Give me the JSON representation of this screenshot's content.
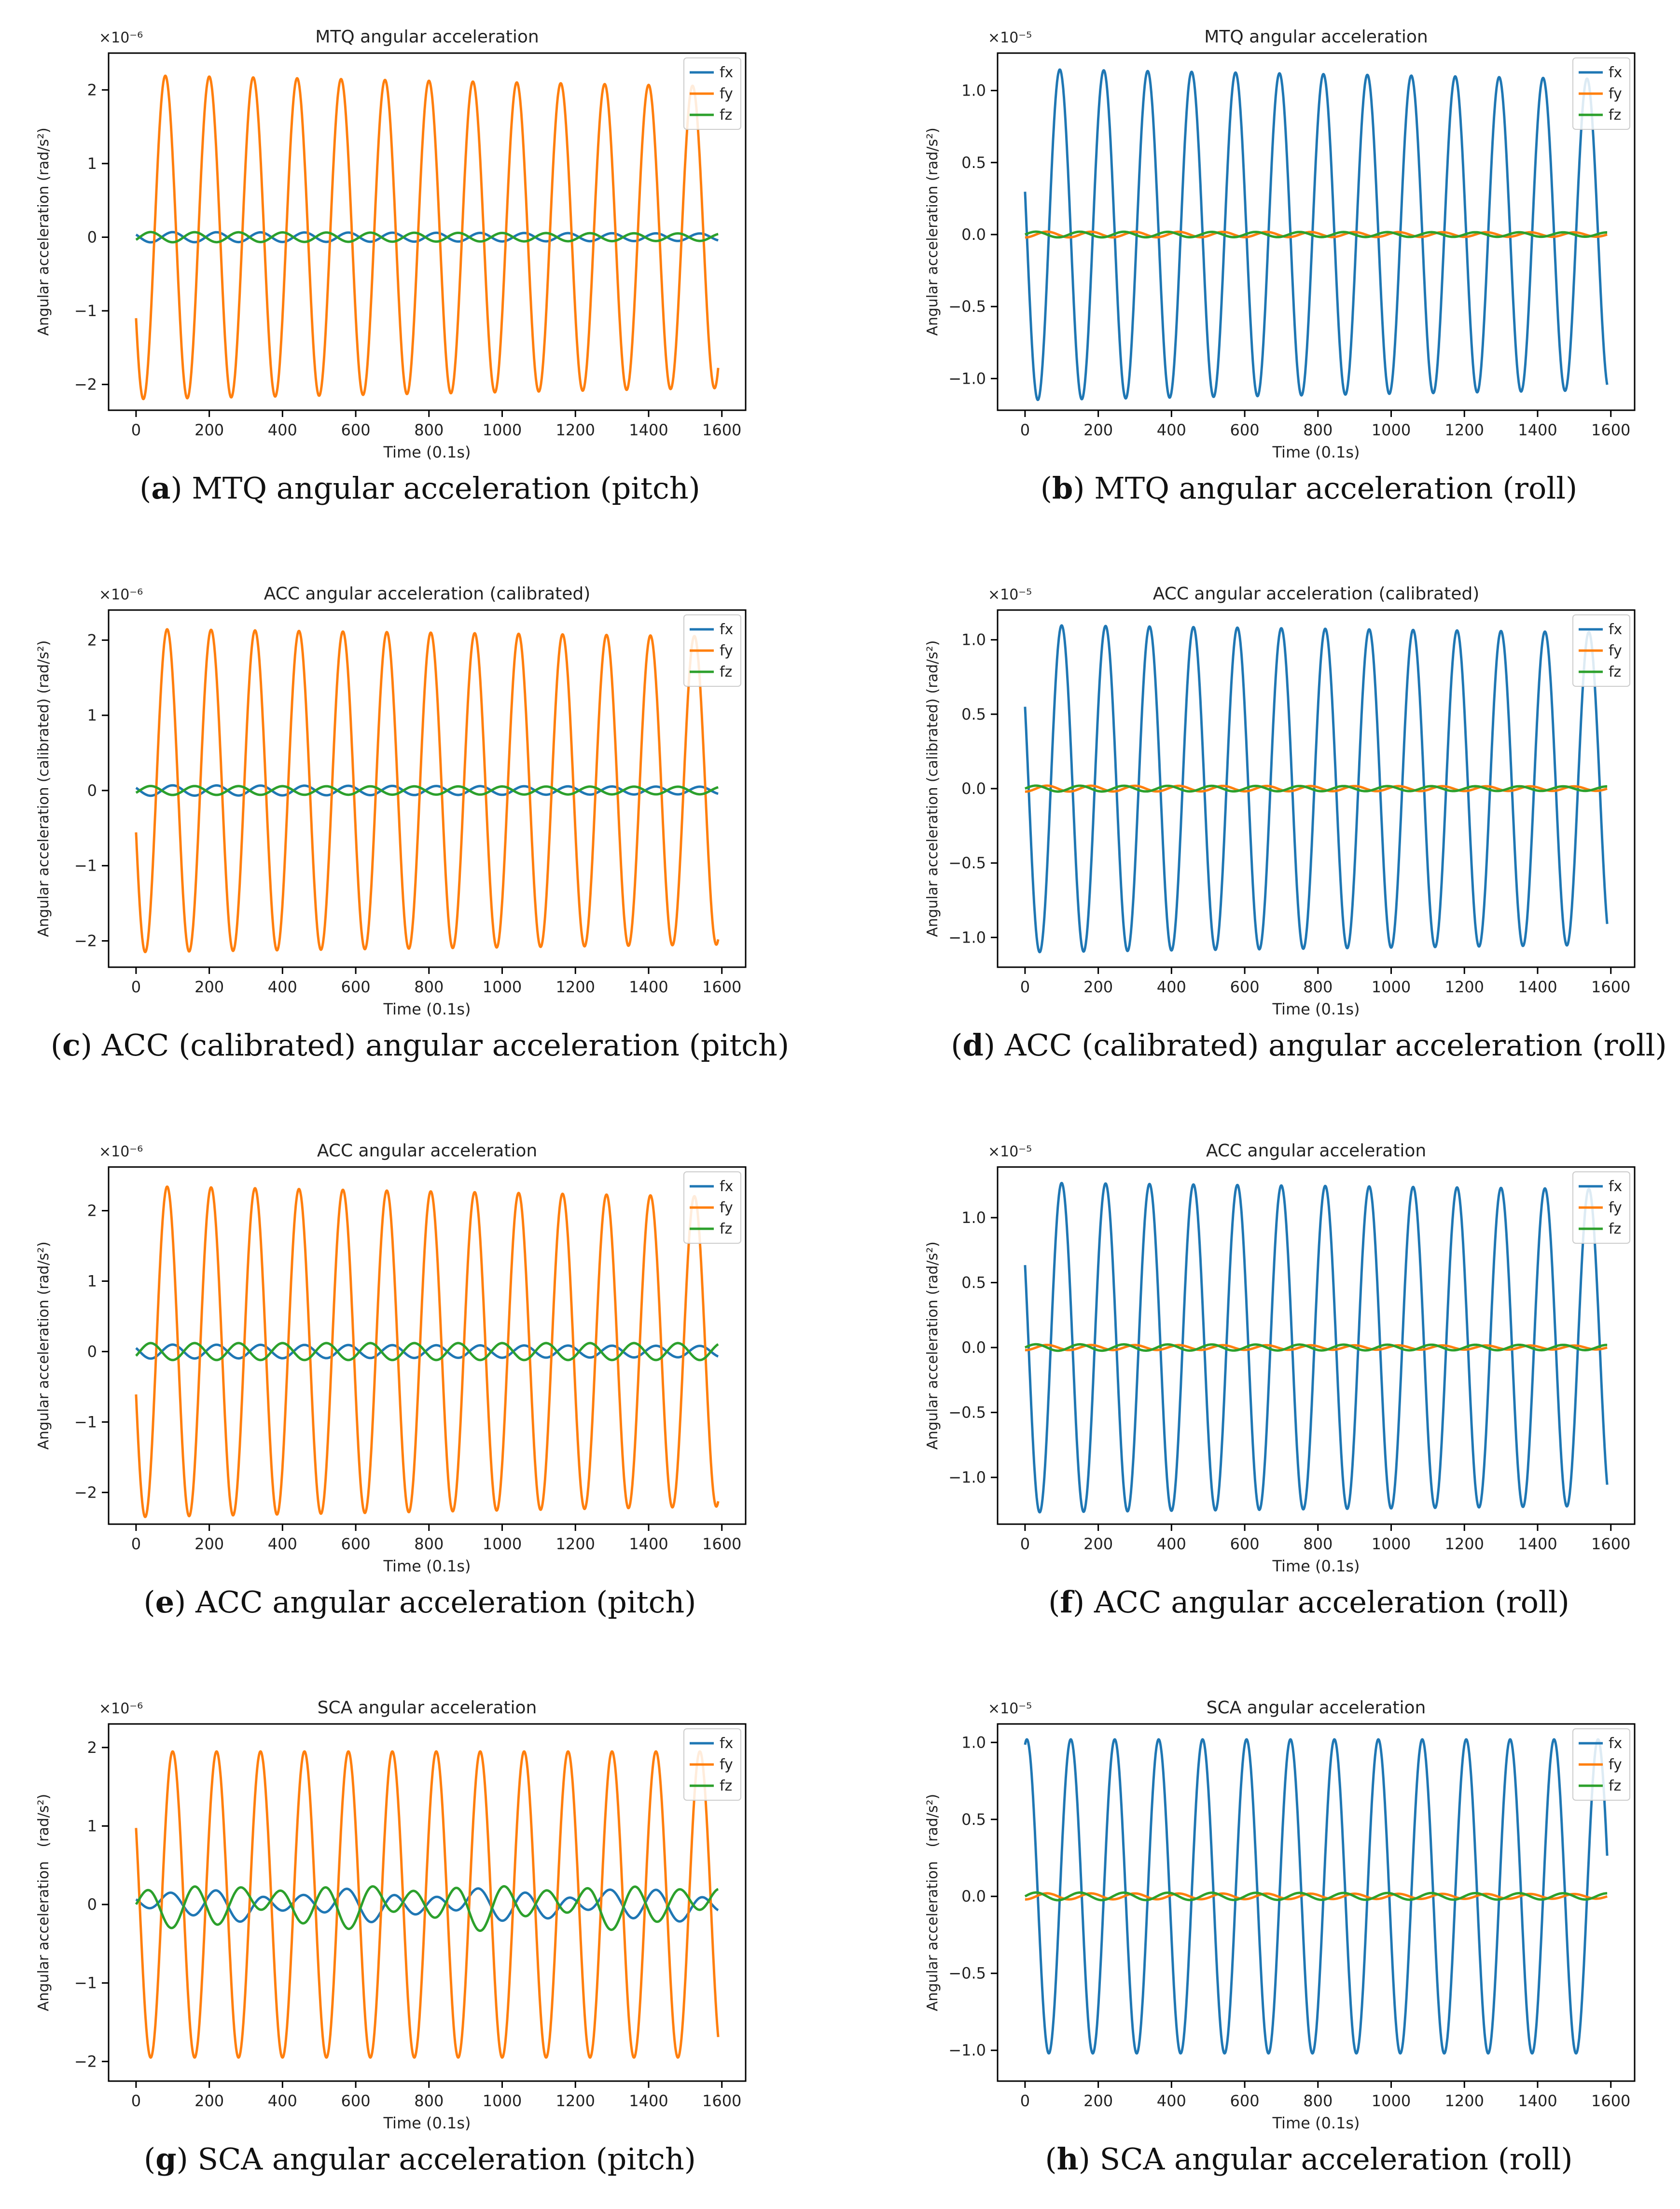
{
  "figure": {
    "background": "#ffffff"
  },
  "colors": {
    "fx": "#1f77b4",
    "fy": "#ff7f0e",
    "fz": "#2ca02c"
  },
  "chart_data": [
    {
      "id": "a",
      "caption_letter": "a",
      "caption_text": "MTQ angular acceleration (pitch)",
      "type": "line",
      "title": "MTQ angular acceleration",
      "xlabel": "Time (0.1s)",
      "ylabel": "Angular acceleration (rad/s²)",
      "multiplier": "×10⁻⁶",
      "xlim": [
        -75,
        1665
      ],
      "ylim": [
        -2.35,
        2.5
      ],
      "xticks": [
        0,
        200,
        400,
        600,
        800,
        1000,
        1200,
        1400,
        1600
      ],
      "xtick_labels": [
        "0",
        "200",
        "400",
        "600",
        "800",
        "1000",
        "1200",
        "1400",
        "1600"
      ],
      "yticks": [
        -2,
        -1,
        0,
        1,
        2
      ],
      "ytick_labels": [
        "−2",
        "−1",
        "0",
        "1",
        "2"
      ],
      "legend": [
        "fx",
        "fy",
        "fz"
      ],
      "legend_position": "top-right",
      "grid": false,
      "series": [
        {
          "name": "fx",
          "x_start": 0,
          "x_end": 1590,
          "period": 120,
          "first_peak": 100,
          "amplitude": 0.07,
          "amplitude_end": 0.05,
          "offset": 0,
          "jitter": 0
        },
        {
          "name": "fy",
          "x_start": 0,
          "x_end": 1590,
          "period": 120,
          "first_peak": 80,
          "amplitude": 2.2,
          "amplitude_end": 2.05,
          "offset": 0,
          "jitter": 0
        },
        {
          "name": "fz",
          "x_start": 0,
          "x_end": 1590,
          "period": 120,
          "first_peak": 40,
          "amplitude": 0.07,
          "amplitude_end": 0.05,
          "offset": 0,
          "jitter": 0
        }
      ]
    },
    {
      "id": "b",
      "caption_letter": "b",
      "caption_text": "MTQ angular acceleration (roll)",
      "type": "line",
      "title": "MTQ angular acceleration",
      "xlabel": "Time (0.1s)",
      "ylabel": "Angular acceleration (rad/s²)",
      "multiplier": "×10⁻⁵",
      "xlim": [
        -75,
        1665
      ],
      "ylim": [
        -1.22,
        1.26
      ],
      "xticks": [
        0,
        200,
        400,
        600,
        800,
        1000,
        1200,
        1400,
        1600
      ],
      "xtick_labels": [
        "0",
        "200",
        "400",
        "600",
        "800",
        "1000",
        "1200",
        "1400",
        "1600"
      ],
      "yticks": [
        -1.0,
        -0.5,
        0.0,
        0.5,
        1.0
      ],
      "ytick_labels": [
        "−1.0",
        "−0.5",
        "0.0",
        "0.5",
        "1.0"
      ],
      "legend": [
        "fx",
        "fy",
        "fz"
      ],
      "legend_position": "top-right",
      "grid": false,
      "series": [
        {
          "name": "fx",
          "x_start": 0,
          "x_end": 1590,
          "period": 120,
          "first_peak": 95,
          "amplitude": 1.15,
          "amplitude_end": 1.08,
          "offset": 0,
          "jitter": 0
        },
        {
          "name": "fy",
          "x_start": 0,
          "x_end": 1590,
          "period": 120,
          "first_peak": 60,
          "amplitude": 0.02,
          "amplitude_end": 0.015,
          "offset": 0,
          "jitter": 0
        },
        {
          "name": "fz",
          "x_start": 0,
          "x_end": 1590,
          "period": 120,
          "first_peak": 30,
          "amplitude": 0.02,
          "amplitude_end": 0.015,
          "offset": 0,
          "jitter": 0
        }
      ]
    },
    {
      "id": "c",
      "caption_letter": "c",
      "caption_text": "ACC (calibrated) angular acceleration (pitch)",
      "type": "line",
      "title": "ACC angular acceleration (calibrated)",
      "xlabel": "Time (0.1s)",
      "ylabel": "Angular acceleration (calibrated) (rad/s²)",
      "multiplier": "×10⁻⁶",
      "xlim": [
        -75,
        1665
      ],
      "ylim": [
        -2.35,
        2.4
      ],
      "xticks": [
        0,
        200,
        400,
        600,
        800,
        1000,
        1200,
        1400,
        1600
      ],
      "xtick_labels": [
        "0",
        "200",
        "400",
        "600",
        "800",
        "1000",
        "1200",
        "1400",
        "1600"
      ],
      "yticks": [
        -2,
        -1,
        0,
        1,
        2
      ],
      "ytick_labels": [
        "−2",
        "−1",
        "0",
        "1",
        "2"
      ],
      "legend": [
        "fx",
        "fy",
        "fz"
      ],
      "legend_position": "top-right",
      "grid": false,
      "series": [
        {
          "name": "fx",
          "x_start": 0,
          "x_end": 1590,
          "period": 120,
          "first_peak": 100,
          "amplitude": 0.07,
          "amplitude_end": 0.05,
          "offset": 0,
          "jitter": 0
        },
        {
          "name": "fy",
          "x_start": 0,
          "x_end": 1590,
          "period": 120,
          "first_peak": 85,
          "amplitude": 2.15,
          "amplitude_end": 2.05,
          "offset": 0,
          "jitter": 0
        },
        {
          "name": "fz",
          "x_start": 0,
          "x_end": 1590,
          "period": 120,
          "first_peak": 40,
          "amplitude": 0.06,
          "amplitude_end": 0.05,
          "offset": 0,
          "jitter": 0
        }
      ]
    },
    {
      "id": "d",
      "caption_letter": "d",
      "caption_text": "ACC (calibrated) angular acceleration (roll)",
      "type": "line",
      "title": "ACC angular acceleration (calibrated)",
      "xlabel": "Time (0.1s)",
      "ylabel": "Angular acceleration (calibrated) (rad/s²)",
      "multiplier": "×10⁻⁵",
      "xlim": [
        -75,
        1665
      ],
      "ylim": [
        -1.2,
        1.2
      ],
      "xticks": [
        0,
        200,
        400,
        600,
        800,
        1000,
        1200,
        1400,
        1600
      ],
      "xtick_labels": [
        "0",
        "200",
        "400",
        "600",
        "800",
        "1000",
        "1200",
        "1400",
        "1600"
      ],
      "yticks": [
        -1.0,
        -0.5,
        0.0,
        0.5,
        1.0
      ],
      "ytick_labels": [
        "−1.0",
        "−0.5",
        "0.0",
        "0.5",
        "1.0"
      ],
      "legend": [
        "fx",
        "fy",
        "fz"
      ],
      "legend_position": "top-right",
      "grid": false,
      "series": [
        {
          "name": "fx",
          "x_start": 0,
          "x_end": 1590,
          "period": 120,
          "first_peak": 100,
          "amplitude": 1.1,
          "amplitude_end": 1.05,
          "offset": 0,
          "jitter": 0
        },
        {
          "name": "fy",
          "x_start": 0,
          "x_end": 1590,
          "period": 120,
          "first_peak": 60,
          "amplitude": 0.02,
          "amplitude_end": 0.015,
          "offset": 0,
          "jitter": 0
        },
        {
          "name": "fz",
          "x_start": 0,
          "x_end": 1590,
          "period": 120,
          "first_peak": 30,
          "amplitude": 0.02,
          "amplitude_end": 0.015,
          "offset": 0,
          "jitter": 0
        }
      ]
    },
    {
      "id": "e",
      "caption_letter": "e",
      "caption_text": "ACC angular acceleration (pitch)",
      "type": "line",
      "title": "ACC angular acceleration",
      "xlabel": "Time (0.1s)",
      "ylabel": "Angular acceleration (rad/s²)",
      "multiplier": "×10⁻⁶",
      "xlim": [
        -75,
        1665
      ],
      "ylim": [
        -2.45,
        2.62
      ],
      "xticks": [
        0,
        200,
        400,
        600,
        800,
        1000,
        1200,
        1400,
        1600
      ],
      "xtick_labels": [
        "0",
        "200",
        "400",
        "600",
        "800",
        "1000",
        "1200",
        "1400",
        "1600"
      ],
      "yticks": [
        -2,
        -1,
        0,
        1,
        2
      ],
      "ytick_labels": [
        "−2",
        "−1",
        "0",
        "1",
        "2"
      ],
      "legend": [
        "fx",
        "fy",
        "fz"
      ],
      "legend_position": "top-right",
      "grid": false,
      "series": [
        {
          "name": "fx",
          "x_start": 0,
          "x_end": 1590,
          "period": 120,
          "first_peak": 100,
          "amplitude": 0.1,
          "amplitude_end": 0.08,
          "offset": 0,
          "jitter": 0
        },
        {
          "name": "fy",
          "x_start": 0,
          "x_end": 1590,
          "period": 120,
          "first_peak": 85,
          "amplitude": 2.35,
          "amplitude_end": 2.2,
          "offset": 0,
          "jitter": 0
        },
        {
          "name": "fz",
          "x_start": 0,
          "x_end": 1590,
          "period": 120,
          "first_peak": 40,
          "amplitude": 0.12,
          "amplitude_end": 0.12,
          "offset": 0,
          "jitter": 0
        }
      ]
    },
    {
      "id": "f",
      "caption_letter": "f",
      "caption_text": "ACC angular acceleration (roll)",
      "type": "line",
      "title": "ACC angular acceleration",
      "xlabel": "Time (0.1s)",
      "ylabel": "Angular acceleration (rad/s²)",
      "multiplier": "×10⁻⁵",
      "xlim": [
        -75,
        1665
      ],
      "ylim": [
        -1.36,
        1.39
      ],
      "xticks": [
        0,
        200,
        400,
        600,
        800,
        1000,
        1200,
        1400,
        1600
      ],
      "xtick_labels": [
        "0",
        "200",
        "400",
        "600",
        "800",
        "1000",
        "1200",
        "1400",
        "1600"
      ],
      "yticks": [
        -1.0,
        -0.5,
        0.0,
        0.5,
        1.0
      ],
      "ytick_labels": [
        "−1.0",
        "−0.5",
        "0.0",
        "0.5",
        "1.0"
      ],
      "legend": [
        "fx",
        "fy",
        "fz"
      ],
      "legend_position": "top-right",
      "grid": false,
      "series": [
        {
          "name": "fx",
          "x_start": 0,
          "x_end": 1590,
          "period": 120,
          "first_peak": 100,
          "amplitude": 1.27,
          "amplitude_end": 1.22,
          "offset": 0,
          "jitter": 0
        },
        {
          "name": "fy",
          "x_start": 0,
          "x_end": 1590,
          "period": 120,
          "first_peak": 60,
          "amplitude": 0.02,
          "amplitude_end": 0.015,
          "offset": 0,
          "jitter": 0
        },
        {
          "name": "fz",
          "x_start": 0,
          "x_end": 1590,
          "period": 120,
          "first_peak": 30,
          "amplitude": 0.025,
          "amplitude_end": 0.02,
          "offset": 0,
          "jitter": 0
        }
      ]
    },
    {
      "id": "g",
      "caption_letter": "g",
      "caption_text": "SCA angular acceleration (pitch)",
      "type": "line",
      "title": "SCA angular acceleration",
      "xlabel": "Time (0.1s)",
      "ylabel": "Angular acceleration   (rad/s²)",
      "multiplier": "×10⁻⁶",
      "xlim": [
        -75,
        1665
      ],
      "ylim": [
        -2.25,
        2.3
      ],
      "xticks": [
        0,
        200,
        400,
        600,
        800,
        1000,
        1200,
        1400,
        1600
      ],
      "xtick_labels": [
        "0",
        "200",
        "400",
        "600",
        "800",
        "1000",
        "1200",
        "1400",
        "1600"
      ],
      "yticks": [
        -2,
        -1,
        0,
        1,
        2
      ],
      "ytick_labels": [
        "−2",
        "−1",
        "0",
        "1",
        "2"
      ],
      "legend": [
        "fx",
        "fy",
        "fz"
      ],
      "legend_position": "top-right",
      "grid": false,
      "series": [
        {
          "name": "fx",
          "x_start": 0,
          "x_end": 1590,
          "period": 120,
          "first_peak": 100,
          "amplitude": 0.13,
          "amplitude_end": 0.15,
          "offset": 0,
          "jitter": 0.06
        },
        {
          "name": "fy",
          "x_start": 0,
          "x_end": 1590,
          "period": 120,
          "first_peak": 100,
          "amplitude": 1.95,
          "amplitude_end": 1.95,
          "offset": 0,
          "jitter": 0
        },
        {
          "name": "fz",
          "x_start": 0,
          "x_end": 1590,
          "period": 120,
          "first_peak": 40,
          "amplitude": 0.2,
          "amplitude_end": 0.2,
          "offset": 0,
          "jitter": 0.08
        }
      ]
    },
    {
      "id": "h",
      "caption_letter": "h",
      "caption_text": "SCA angular acceleration (roll)",
      "type": "line",
      "title": "SCA angular acceleration",
      "xlabel": "Time (0.1s)",
      "ylabel": "Angular acceleration   (rad/s²)",
      "multiplier": "×10⁻⁵",
      "xlim": [
        -75,
        1665
      ],
      "ylim": [
        -1.2,
        1.12
      ],
      "xticks": [
        0,
        200,
        400,
        600,
        800,
        1000,
        1200,
        1400,
        1600
      ],
      "xtick_labels": [
        "0",
        "200",
        "400",
        "600",
        "800",
        "1000",
        "1200",
        "1400",
        "1600"
      ],
      "yticks": [
        -1.0,
        -0.5,
        0.0,
        0.5,
        1.0
      ],
      "ytick_labels": [
        "−1.0",
        "−0.5",
        "0.0",
        "0.5",
        "1.0"
      ],
      "legend": [
        "fx",
        "fy",
        "fz"
      ],
      "legend_position": "top-right",
      "grid": false,
      "series": [
        {
          "name": "fx",
          "x_start": 0,
          "x_end": 1590,
          "period": 120,
          "first_peak": 5,
          "amplitude": 1.02,
          "amplitude_end": 1.02,
          "offset": 0,
          "jitter": 0
        },
        {
          "name": "fy",
          "x_start": 0,
          "x_end": 1590,
          "period": 120,
          "first_peak": 60,
          "amplitude": 0.02,
          "amplitude_end": 0.015,
          "offset": 0,
          "jitter": 0
        },
        {
          "name": "fz",
          "x_start": 0,
          "x_end": 1590,
          "period": 120,
          "first_peak": 30,
          "amplitude": 0.025,
          "amplitude_end": 0.02,
          "offset": 0,
          "jitter": 0
        }
      ]
    }
  ]
}
